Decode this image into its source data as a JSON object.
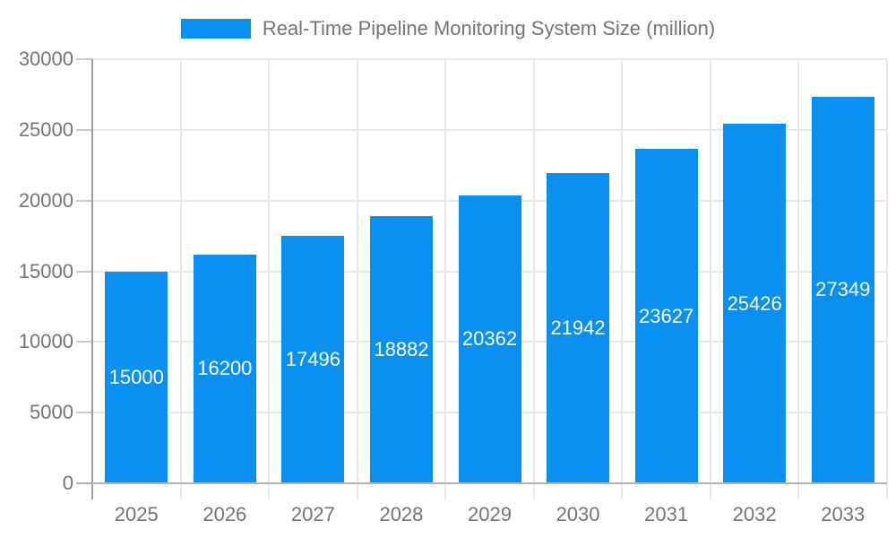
{
  "legend": {
    "label": "Real-Time Pipeline Monitoring System Size (million)"
  },
  "chart_data": {
    "type": "bar",
    "title": "Real-Time Pipeline Monitoring System Size (million)",
    "categories": [
      "2025",
      "2026",
      "2027",
      "2028",
      "2029",
      "2030",
      "2031",
      "2032",
      "2033"
    ],
    "values": [
      15000,
      16200,
      17496,
      18882,
      20362,
      21942,
      23627,
      25426,
      27349
    ],
    "xlabel": "",
    "ylabel": "",
    "ylim": [
      0,
      30000
    ],
    "ytick_step": 5000,
    "yticks": [
      "0",
      "5000",
      "10000",
      "15000",
      "20000",
      "25000",
      "30000"
    ],
    "grid": true,
    "legend_position": "top-center",
    "value_label_position": "inside-middle",
    "colors": {
      "bar": "#0a90f2",
      "axis_text": "#757575",
      "value_text": "#ffffff",
      "gridline": "#e8e8e8",
      "x_axis_line": "#b3b3b3",
      "y_axis_line": "#9e9e9e",
      "tick": "#cccccc",
      "background": "#ffffff"
    }
  }
}
